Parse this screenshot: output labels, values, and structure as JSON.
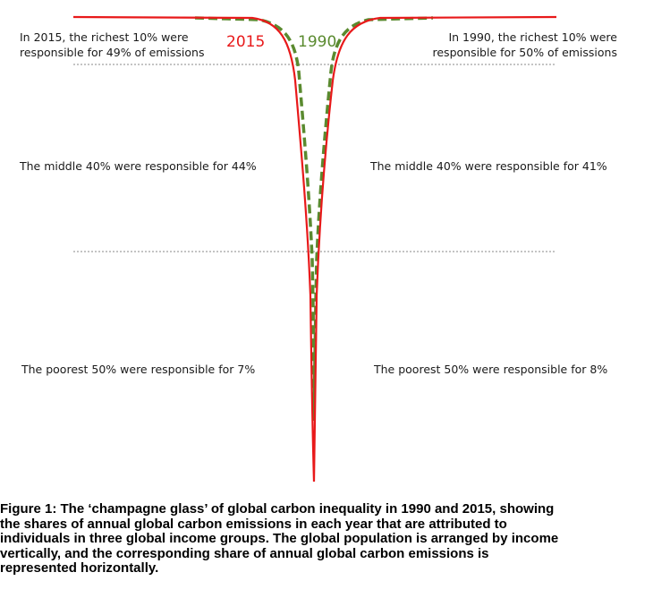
{
  "chart_data": {
    "type": "line",
    "title": "",
    "series": [
      {
        "name": "2015",
        "color": "#e8191a",
        "style": "solid"
      },
      {
        "name": "1990",
        "color": "#5a8a2f",
        "style": "dashed"
      }
    ],
    "income_groups": [
      {
        "group": "richest 10%",
        "share_2015": 49,
        "share_1990": 50
      },
      {
        "group": "middle 40%",
        "share_2015": 44,
        "share_1990": 41
      },
      {
        "group": "poorest 50%",
        "share_2015": 7,
        "share_1990": 8
      }
    ],
    "grid": false
  },
  "annotations": {
    "top_left": [
      "In 2015, the richest 10% were",
      "responsible for 49% of emissions"
    ],
    "top_right": [
      "In 1990, the richest 10% were",
      "responsible for 50% of emissions"
    ],
    "mid_left": "The middle 40% were responsible for 44%",
    "mid_right": "The middle 40% were responsible for 41%",
    "low_left": "The poorest 50% were responsible for 7%",
    "low_right": "The poorest 50% were responsible for 8%"
  },
  "caption": "Figure 1: The ‘champagne glass’ of global carbon inequality in 1990 and 2015, showing\nthe shares of annual global carbon emissions in each year that are attributed to\nindividuals in three global income groups. The global population is arranged by income\nvertically, and the corresponding share of annual global carbon emissions is\nrepresented horizontally."
}
